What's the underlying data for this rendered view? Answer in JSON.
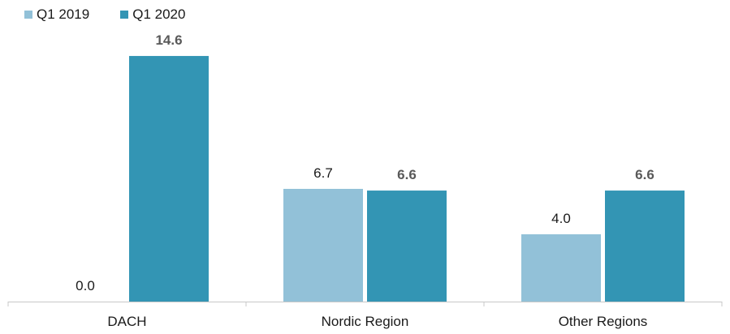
{
  "chart_data": {
    "type": "bar",
    "categories": [
      "DACH",
      "Nordic Region",
      "Other Regions"
    ],
    "series": [
      {
        "name": "Q1 2019",
        "values": [
          0.0,
          6.7,
          4.0
        ],
        "color": "#92c1d8",
        "label_bold": false
      },
      {
        "name": "Q1 2020",
        "values": [
          14.6,
          6.6,
          6.6
        ],
        "color": "#3395b4",
        "label_bold": true
      }
    ],
    "ylim": [
      0,
      16
    ],
    "grid": false,
    "legend_position": "top-left"
  }
}
